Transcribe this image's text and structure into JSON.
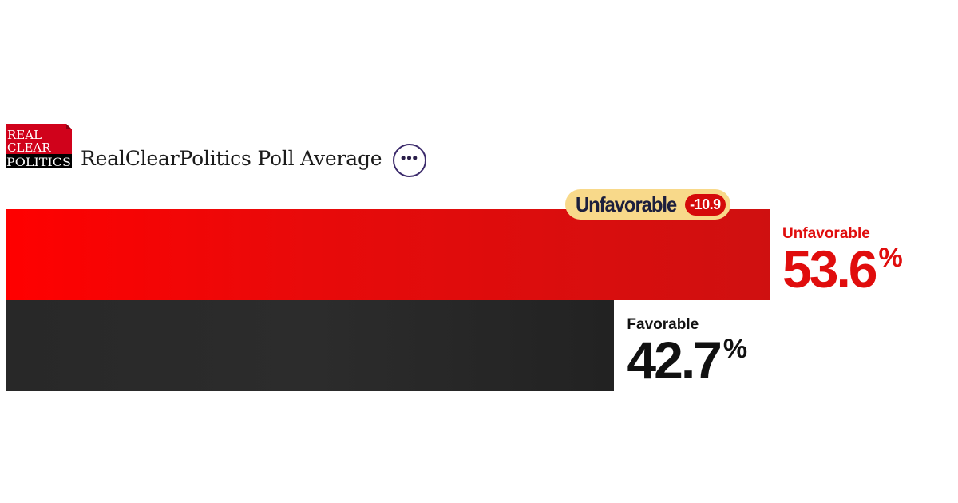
{
  "source": {
    "logo_lines": [
      "REAL",
      "CLEAR",
      "POLITICS"
    ],
    "title": "RealClearPolitics Poll Average",
    "more_label": "•••"
  },
  "colors": {
    "unfavorable": "#e00d0d",
    "favorable": "#2a2a2a",
    "badge_bg": "#f8d98a",
    "badge_value_bg": "#d50a0a",
    "logo_red": "#d0021b"
  },
  "chart_data": {
    "type": "bar",
    "orientation": "horizontal",
    "categories": [
      "Unfavorable",
      "Favorable"
    ],
    "values": [
      53.6,
      42.7
    ],
    "unit": "%",
    "xlim": [
      0,
      69
    ],
    "grid": false,
    "spread": {
      "leader": "Unfavorable",
      "value": "-10.9"
    }
  }
}
